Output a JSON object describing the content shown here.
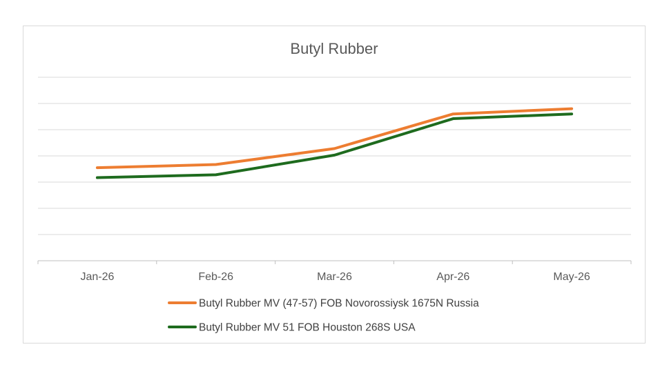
{
  "chart_data": {
    "type": "line",
    "title": "Butyl Rubber",
    "xlabel": "",
    "ylabel": "",
    "categories": [
      "Jan-26",
      "Feb-26",
      "Mar-26",
      "Apr-26",
      "May-26"
    ],
    "ylim": [
      0,
      7
    ],
    "grid": true,
    "y_tick_labels_shown": false,
    "legend_position": "bottom",
    "series": [
      {
        "name": "Butyl Rubber MV (47-57) FOB Novorossiysk 1675N Russia",
        "color": "#ED7D31",
        "values": [
          3.55,
          3.67,
          4.28,
          5.6,
          5.8
        ]
      },
      {
        "name": "Butyl Rubber MV 51 FOB Houston 268S USA",
        "color": "#1E6B1E",
        "values": [
          3.17,
          3.28,
          4.03,
          5.42,
          5.6
        ]
      }
    ]
  }
}
